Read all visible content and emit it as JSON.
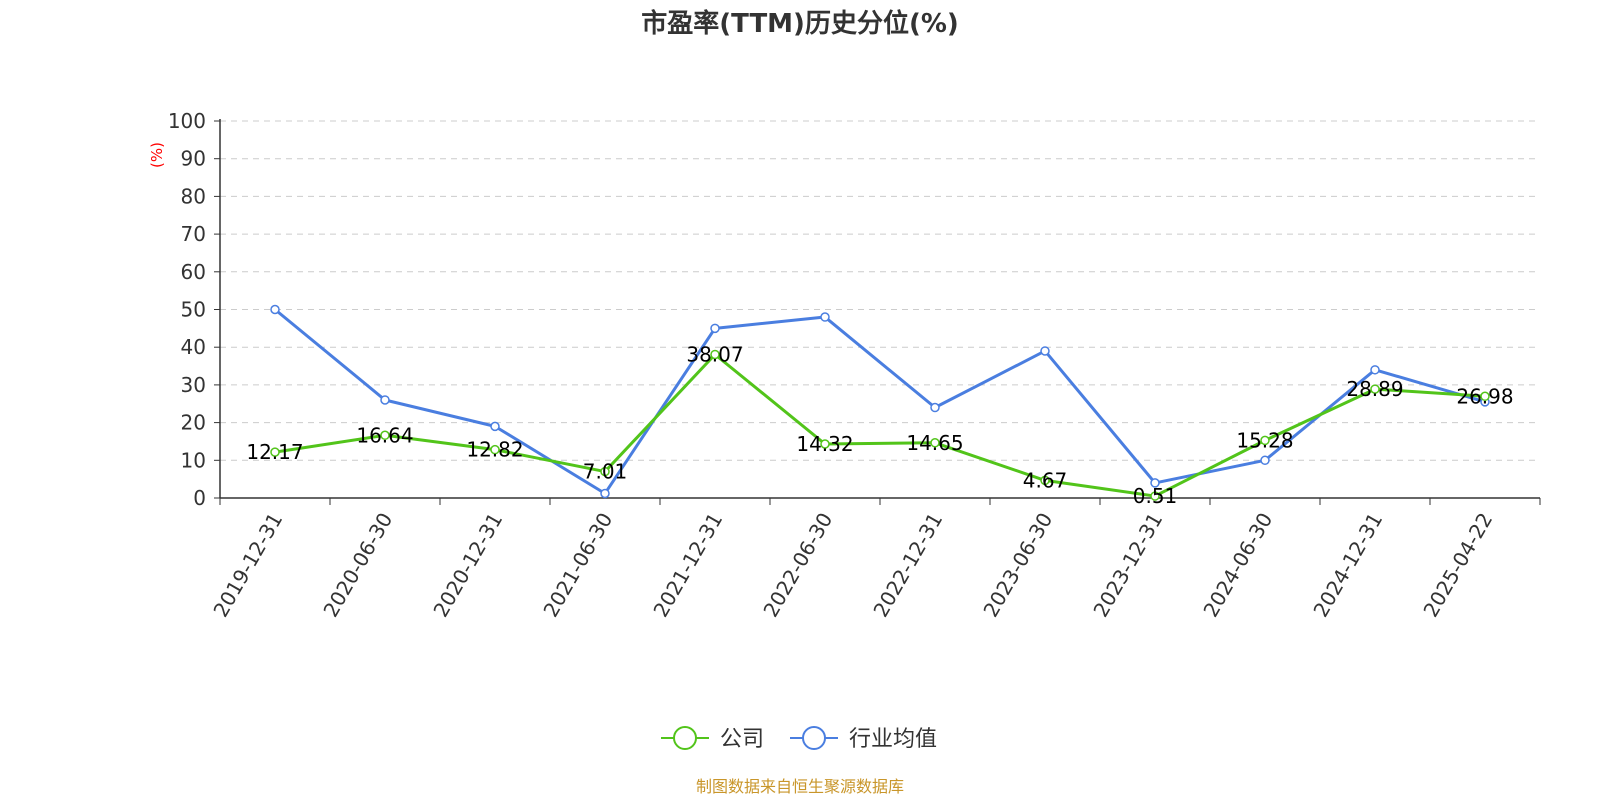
{
  "chart_data": {
    "type": "line",
    "title": "市盈率(TTM)历史分位(%)",
    "ylabel": "(%)",
    "ylim": [
      0,
      100
    ],
    "yticks": [
      "0",
      "10",
      "20",
      "30",
      "40",
      "50",
      "60",
      "70",
      "80",
      "90",
      "100"
    ],
    "grid": true,
    "legend_position": "bottom",
    "categories": [
      "2019-12-31",
      "2020-06-30",
      "2020-12-31",
      "2021-06-30",
      "2021-12-31",
      "2022-06-30",
      "2022-12-31",
      "2023-06-30",
      "2023-12-31",
      "2024-06-30",
      "2024-12-31",
      "2025-04-22"
    ],
    "series": [
      {
        "name": "公司",
        "color": "#52c41a",
        "values": [
          12.17,
          16.64,
          12.82,
          7.01,
          38.07,
          14.32,
          14.65,
          4.67,
          0.51,
          15.28,
          28.89,
          26.98
        ],
        "labels": [
          "12.17",
          "16.64",
          "12.82",
          "7.01",
          "38.07",
          "14.32",
          "14.65",
          "4.67",
          "0.51",
          "15.28",
          "28.89",
          "26.98"
        ]
      },
      {
        "name": "行业均值",
        "color": "#4a7ee0",
        "values": [
          50.0,
          26.0,
          19.0,
          1.2,
          45.0,
          48.0,
          24.0,
          39.0,
          4.0,
          10.0,
          34.0,
          25.5
        ]
      }
    ]
  },
  "source": "制图数据来自恒生聚源数据库"
}
